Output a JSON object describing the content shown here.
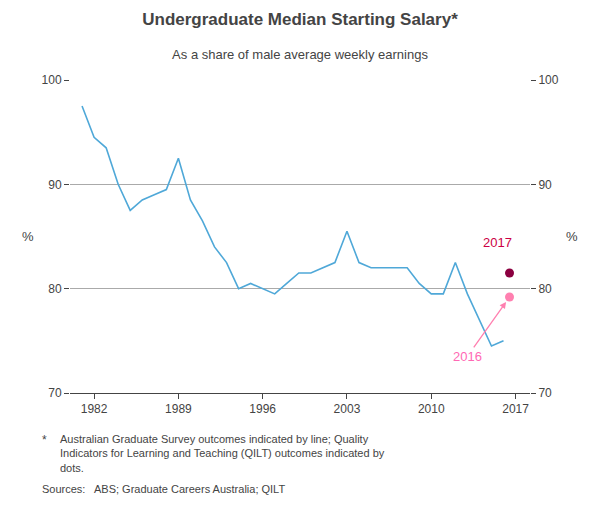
{
  "chart_data": {
    "type": "line",
    "title": "Undergraduate Median Starting Salary*",
    "subtitle": "As a share of male average weekly earnings",
    "ylabel": "%",
    "y2label": "%",
    "background_color": "#ffffff",
    "series": [
      {
        "type": "line",
        "color": "#4fa8d8",
        "x": [
          1981,
          1982,
          1983,
          1984,
          1985,
          1986,
          1987,
          1988,
          1989,
          1990,
          1991,
          1992,
          1993,
          1994,
          1995,
          1996,
          1997,
          1998,
          1999,
          2000,
          2001,
          2002,
          2003,
          2004,
          2005,
          2006,
          2007,
          2008,
          2009,
          2010,
          2011,
          2012,
          2013,
          2014,
          2015,
          2016
        ],
        "values": [
          97.5,
          94.5,
          93.5,
          90.0,
          87.5,
          88.5,
          89.0,
          89.5,
          92.5,
          88.5,
          86.5,
          84.0,
          82.5,
          80.0,
          80.5,
          80.0,
          79.5,
          80.5,
          81.5,
          81.5,
          82.0,
          82.5,
          85.5,
          82.5,
          82.0,
          82.0,
          82.0,
          82.0,
          80.5,
          79.5,
          79.5,
          82.5,
          79.5,
          77.0,
          74.5,
          75.0
        ]
      },
      {
        "type": "scatter",
        "color": "#ff80b0",
        "x": [
          2016.5
        ],
        "values": [
          79.2
        ],
        "annotation": {
          "text": "2016",
          "x": 2013.0,
          "y": 73.5,
          "color": "#ff69b4",
          "arrow_color": "#ff80b0"
        }
      },
      {
        "type": "scatter",
        "color": "#8b0040",
        "x": [
          2016.5
        ],
        "values": [
          81.5
        ],
        "annotation": {
          "text": "2017",
          "x": 2015.5,
          "y": 83.5,
          "color": "#cc0044"
        }
      }
    ],
    "xlim": [
      1980,
      2018.2
    ],
    "xticks": [
      1982,
      1989,
      1996,
      2003,
      2010,
      2017
    ],
    "ylim": [
      70,
      100
    ],
    "yticks": [
      70,
      80,
      90,
      100
    ],
    "y2lim": [
      70,
      100
    ],
    "y2ticks": [
      70,
      80,
      90,
      100
    ],
    "grid": "y",
    "grid_color": "#aaaaaa",
    "footnotes": [
      {
        "symbol": "*",
        "text": "Australian Graduate Survey outcomes indicated by line; Quality\nIndicators for Learning and Teaching (QILT) outcomes indicated by\ndots."
      },
      {
        "text": "Sources:   ABS; Graduate Careers Australia; QILT"
      }
    ]
  }
}
